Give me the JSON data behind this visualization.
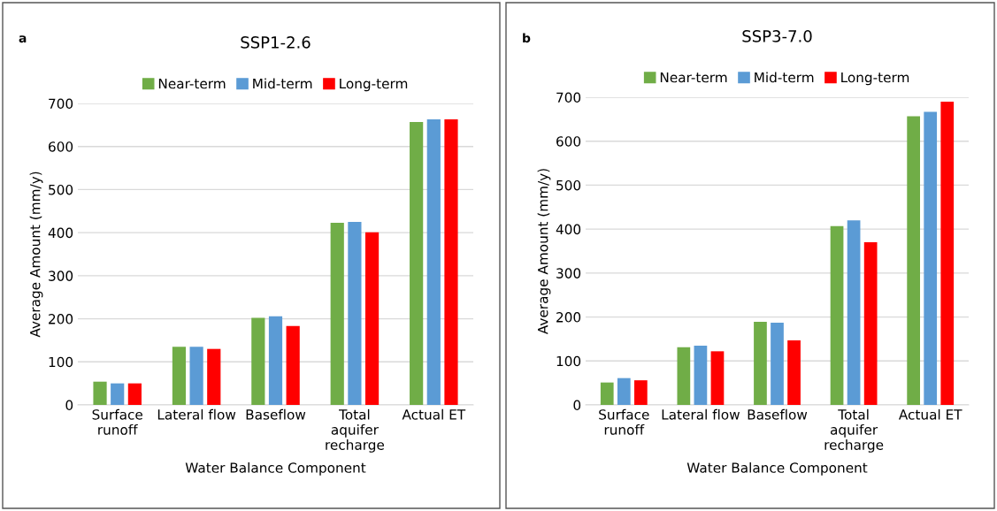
{
  "chart_data": [
    {
      "type": "bar",
      "title": "SSP1-2.6",
      "annotations": [
        "a"
      ],
      "xlabel": "Water Balance Component",
      "ylabel": "Average Amount (mm/y)",
      "categories": [
        "Surface\nrunoff",
        "Lateral flow",
        "Baseflow",
        "Total\naquifer\nrecharge",
        "Actual ET"
      ],
      "series": [
        {
          "name": "Near-term",
          "color": "#70ad47",
          "values": [
            54,
            135,
            202,
            423,
            657
          ]
        },
        {
          "name": "Mid-term",
          "color": "#5b9bd5",
          "values": [
            50,
            135,
            206,
            425,
            663
          ]
        },
        {
          "name": "Long-term",
          "color": "#ff0000",
          "values": [
            50,
            130,
            183,
            401,
            663
          ]
        }
      ],
      "ylim": [
        0,
        700
      ],
      "yticks": [
        0,
        100,
        200,
        300,
        400,
        500,
        600,
        700
      ],
      "grid": "y",
      "legend": "top"
    },
    {
      "type": "bar",
      "title": "SSP3-7.0",
      "annotations": [
        "b"
      ],
      "xlabel": "Water Balance Component",
      "ylabel": "Average Amount (mm/y)",
      "categories": [
        "Surface\nrunoff",
        "Lateral flow",
        "Baseflow",
        "Total\naquifer\nrecharge",
        "Actual ET"
      ],
      "series": [
        {
          "name": "Near-term",
          "color": "#70ad47",
          "values": [
            51,
            131,
            189,
            407,
            657
          ]
        },
        {
          "name": "Mid-term",
          "color": "#5b9bd5",
          "values": [
            61,
            135,
            187,
            420,
            667
          ]
        },
        {
          "name": "Long-term",
          "color": "#ff0000",
          "values": [
            56,
            122,
            147,
            370,
            690
          ]
        }
      ],
      "ylim": [
        0,
        700
      ],
      "yticks": [
        0,
        100,
        200,
        300,
        400,
        500,
        600,
        700
      ],
      "grid": "y",
      "legend": "top"
    }
  ]
}
